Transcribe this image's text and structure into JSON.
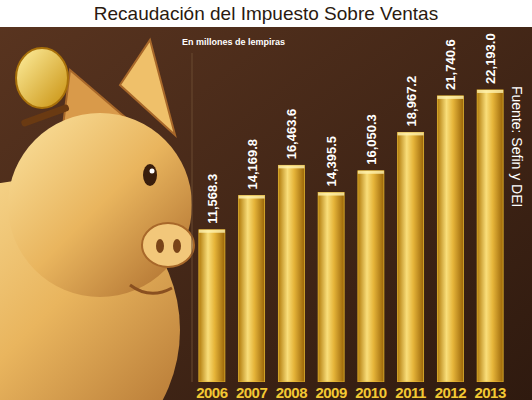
{
  "chart_data": {
    "type": "bar",
    "title": "Recaudación del Impuesto Sobre Ventas",
    "subtitle": "En millones de lempiras",
    "annotations": [
      "Fuente: Sefin y DEI"
    ],
    "categories": [
      "2006",
      "2007",
      "2008",
      "2009",
      "2010",
      "2011",
      "2012",
      "2013"
    ],
    "values": [
      11568.3,
      14169.8,
      16463.6,
      14395.5,
      16050.3,
      18967.2,
      21740.6,
      22193.0
    ],
    "value_labels": [
      "11,568.3",
      "14,169.8",
      "16,463.6",
      "14,395.5",
      "16,050.3",
      "18,967.2",
      "21,740.6",
      "22,193.0"
    ],
    "color": "#e8b830",
    "ylim": [
      0,
      25000
    ],
    "data_labels": true,
    "tick_labels": "x",
    "grid": false
  }
}
